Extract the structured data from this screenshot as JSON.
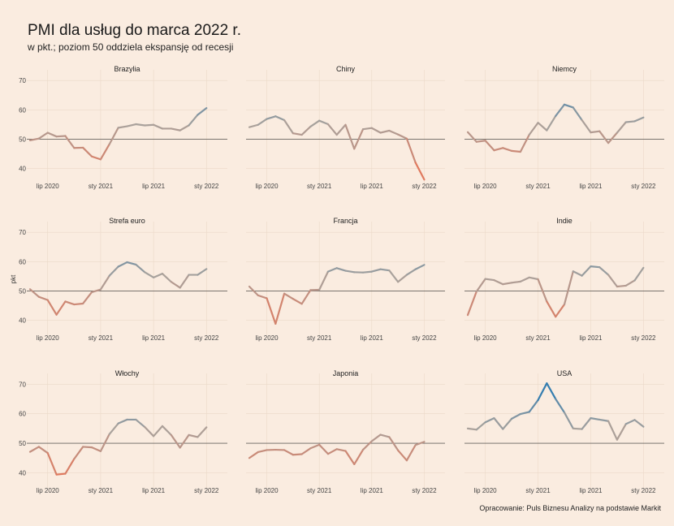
{
  "title": "PMI dla usług do marca 2022 r.",
  "subtitle": "w pkt.; poziom 50 oddziela ekspansję od recesji",
  "ylabel": "pkt",
  "caption": "Opracowanie: Puls Biznesu Analizy na podstawie Markit",
  "colors": {
    "background": "#faece0",
    "grid": "#ebd9c8",
    "reference_line": "#333333",
    "low": "#e07a5f",
    "mid": "#a9a29c",
    "high": "#1f77b4"
  },
  "chart_data": {
    "type": "line",
    "layout": "small-multiples-3x3",
    "x_start": "2020-05",
    "x_ticks": [
      {
        "date": "2020-07",
        "label": "lip 2020"
      },
      {
        "date": "2021-01",
        "label": "sty 2021"
      },
      {
        "date": "2021-07",
        "label": "lip 2021"
      },
      {
        "date": "2022-01",
        "label": "sty 2022"
      }
    ],
    "xlim": [
      "2020-05",
      "2022-03"
    ],
    "ylim": [
      36,
      72
    ],
    "y_ticks": [
      40,
      50,
      60,
      70
    ],
    "reference_line": 50,
    "color_scale": {
      "low_value": 40,
      "mid_value": 55,
      "high_value": 70
    },
    "grid": true,
    "panels": [
      {
        "name": "Brazylia",
        "values": [
          49.6,
          50.2,
          52.2,
          50.9,
          51.1,
          47.0,
          47.1,
          44.1,
          43.1,
          48.3,
          53.9,
          54.4,
          55.1,
          54.7,
          54.9,
          53.6,
          53.6,
          53.0,
          54.7,
          58.3,
          60.6
        ]
      },
      {
        "name": "Chiny",
        "values": [
          54.1,
          54.9,
          56.9,
          57.8,
          56.5,
          52.0,
          51.5,
          54.3,
          56.3,
          55.1,
          51.5,
          54.9,
          46.7,
          53.4,
          53.8,
          52.2,
          52.9,
          51.6,
          50.2,
          42.0,
          36.2
        ]
      },
      {
        "name": "Niemcy",
        "values": [
          52.4,
          49.1,
          49.5,
          46.2,
          47.0,
          46.0,
          45.7,
          51.5,
          55.6,
          53.0,
          57.9,
          61.8,
          60.8,
          56.5,
          52.3,
          52.7,
          48.7,
          52.2,
          55.8,
          56.1,
          57.4
        ]
      },
      {
        "name": "Strefa euro",
        "values": [
          50.6,
          48.0,
          46.9,
          41.9,
          46.4,
          45.4,
          45.7,
          49.6,
          50.5,
          55.2,
          58.3,
          59.8,
          59.0,
          56.4,
          54.6,
          55.9,
          53.1,
          51.1,
          55.5,
          55.5,
          57.5
        ]
      },
      {
        "name": "Francja",
        "values": [
          51.5,
          48.5,
          47.5,
          38.8,
          49.1,
          47.3,
          45.6,
          50.3,
          50.4,
          56.6,
          57.8,
          56.9,
          56.4,
          56.3,
          56.6,
          57.4,
          57.0,
          53.1,
          55.5,
          57.4,
          58.9
        ]
      },
      {
        "name": "Indie",
        "values": [
          41.8,
          49.8,
          54.1,
          53.7,
          52.3,
          52.8,
          53.2,
          54.6,
          54.0,
          46.4,
          41.2,
          45.4,
          56.7,
          55.2,
          58.4,
          58.1,
          55.5,
          51.5,
          51.8,
          53.6,
          57.9
        ]
      },
      {
        "name": "Włochy",
        "values": [
          47.1,
          48.8,
          46.7,
          39.4,
          39.7,
          44.7,
          48.8,
          48.6,
          47.3,
          53.1,
          56.7,
          58.0,
          58.0,
          55.5,
          52.4,
          55.8,
          52.8,
          48.5,
          52.8,
          52.1,
          55.4
        ]
      },
      {
        "name": "Japonia",
        "values": [
          45.0,
          47.0,
          47.7,
          47.8,
          47.7,
          46.1,
          46.3,
          48.3,
          49.5,
          46.4,
          48.0,
          47.4,
          42.9,
          47.8,
          50.7,
          52.9,
          52.1,
          47.6,
          44.2,
          49.4,
          50.5
        ]
      },
      {
        "name": "USA",
        "values": [
          55.0,
          54.6,
          57.1,
          58.5,
          54.8,
          58.3,
          59.9,
          60.6,
          64.6,
          70.3,
          65.0,
          60.4,
          55.0,
          54.8,
          58.5,
          58.0,
          57.5,
          51.2,
          56.5,
          57.9,
          55.6
        ]
      }
    ]
  }
}
